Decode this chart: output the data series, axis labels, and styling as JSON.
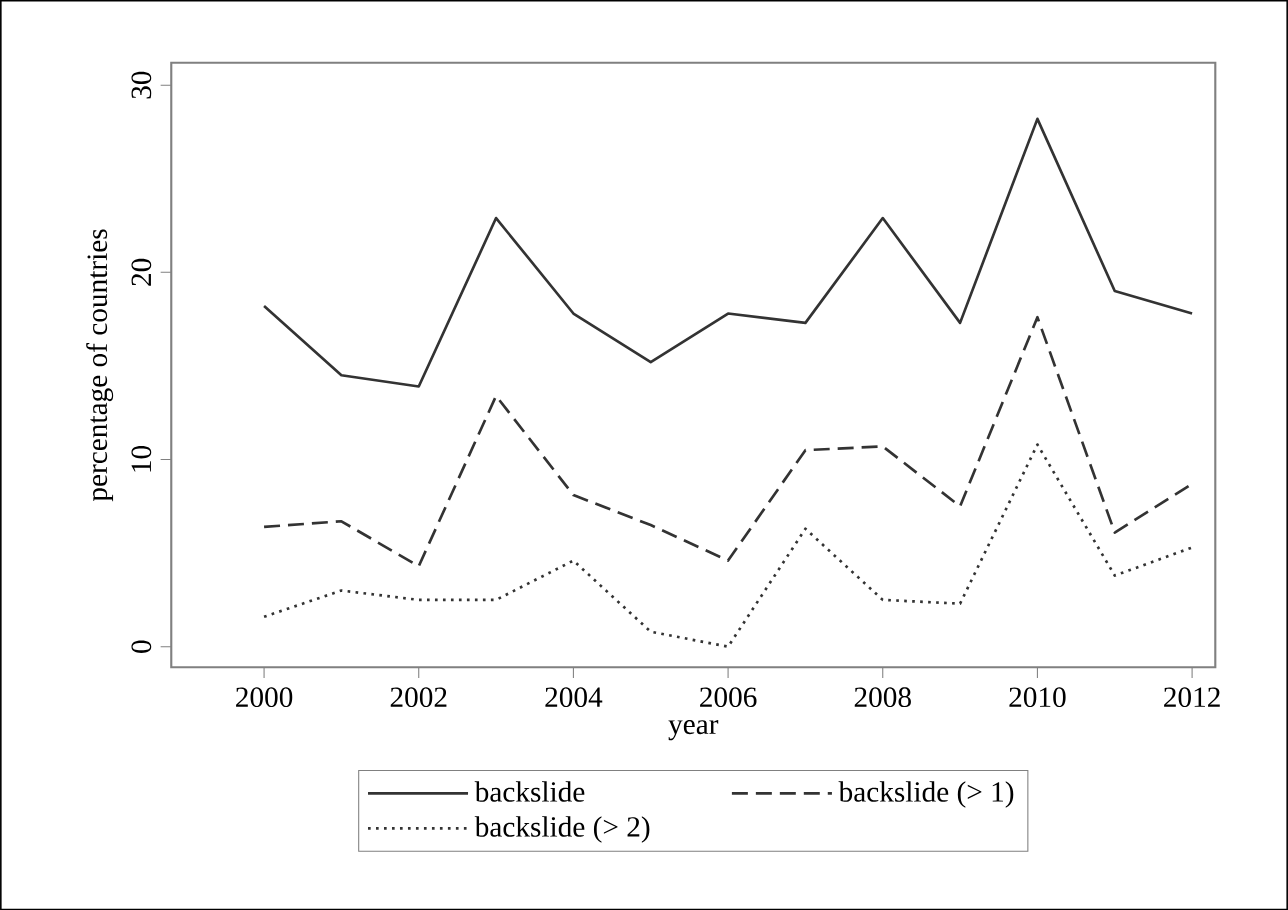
{
  "chart_data": {
    "type": "line",
    "xlabel": "year",
    "ylabel": "percentage of countries",
    "x": [
      2000,
      2001,
      2002,
      2003,
      2004,
      2005,
      2006,
      2007,
      2008,
      2009,
      2010,
      2011,
      2012
    ],
    "series": [
      {
        "name": "backslide",
        "color": "#333333",
        "line_style": "solid",
        "values": [
          18.2,
          14.5,
          13.9,
          22.9,
          17.8,
          15.2,
          17.8,
          17.3,
          22.9,
          17.3,
          28.2,
          19.0,
          17.8
        ]
      },
      {
        "name": "backslide (> 1)",
        "color": "#333333",
        "line_style": "dashed",
        "values": [
          6.4,
          6.7,
          4.3,
          13.4,
          8.1,
          6.5,
          4.6,
          10.5,
          10.7,
          7.5,
          17.6,
          6.1,
          8.7
        ]
      },
      {
        "name": "backslide (> 2)",
        "color": "#333333",
        "line_style": "dotted",
        "values": [
          1.6,
          3.0,
          2.5,
          2.5,
          4.6,
          0.8,
          0.0,
          6.3,
          2.5,
          2.3,
          10.8,
          3.8,
          5.3
        ]
      }
    ],
    "xlim": [
      1998.8,
      2012.3
    ],
    "ylim": [
      -1.1,
      31.2
    ],
    "xticks": [
      2000,
      2002,
      2004,
      2006,
      2008,
      2010,
      2012
    ],
    "yticks": [
      0,
      10,
      20,
      30
    ],
    "grid": false,
    "legend": "bottom",
    "marker": "none"
  }
}
